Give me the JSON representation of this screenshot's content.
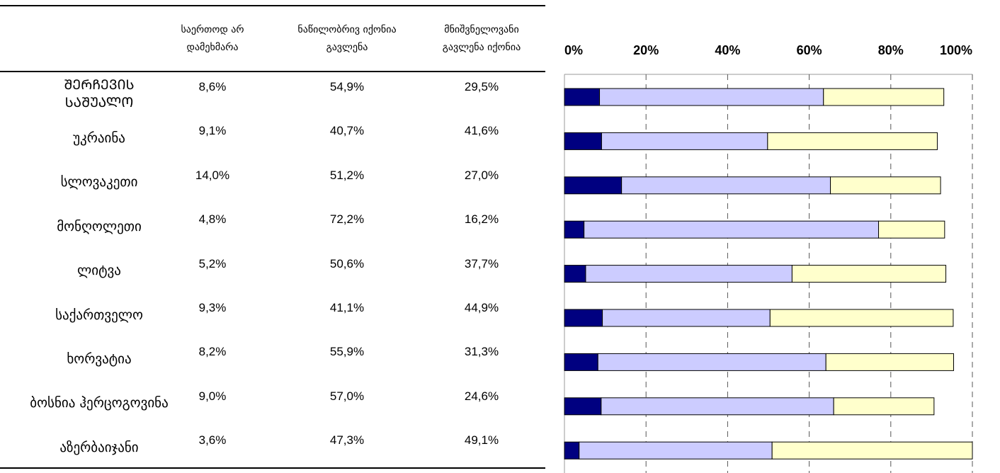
{
  "chart_data": {
    "type": "bar",
    "orientation": "horizontal",
    "stacked": true,
    "categories": [
      "ᲨᲔᲠᲩᲔᲕᲘᲡ ᲡᲐᲨᲣᲐᲚᲝ",
      "უკრაინა",
      "სლოვაკეთი",
      "მონღოლეთი",
      "ლიტვა",
      "საქართველო",
      "ხორვატია",
      "ბოსნია ჰერცოგოვინა",
      "აზერბაიჯანი"
    ],
    "series": [
      {
        "name": "საერთოდ არ დამეხმარა",
        "color": "#000080",
        "values": [
          8.6,
          9.1,
          14.0,
          4.8,
          5.2,
          9.3,
          8.2,
          9.0,
          3.6
        ],
        "value_labels": [
          "8,6%",
          "9,1%",
          "14,0%",
          "4,8%",
          "5,2%",
          "9,3%",
          "8,2%",
          "9,0%",
          "3,6%"
        ]
      },
      {
        "name": "ნაწილობრივ იქონია გავლენა",
        "color": "#ccccff",
        "values": [
          54.9,
          40.7,
          51.2,
          72.2,
          50.6,
          41.1,
          55.9,
          57.0,
          47.3
        ],
        "value_labels": [
          "54,9%",
          "40,7%",
          "51,2%",
          "72,2%",
          "50,6%",
          "41,1%",
          "55,9%",
          "57,0%",
          "47,3%"
        ]
      },
      {
        "name": "მნიშვნელოვანი გავლენა იქონია",
        "color": "#ffffcc",
        "values": [
          29.5,
          41.6,
          27.0,
          16.2,
          37.7,
          44.9,
          31.3,
          24.6,
          49.1
        ],
        "value_labels": [
          "29,5%",
          "41,6%",
          "27,0%",
          "16,2%",
          "37,7%",
          "44,9%",
          "31,3%",
          "24,6%",
          "49,1%"
        ]
      }
    ],
    "xlim": [
      0,
      100
    ],
    "xticks": [
      {
        "value": 0,
        "label": "0%"
      },
      {
        "value": 20,
        "label": "20%"
      },
      {
        "value": 40,
        "label": "40%"
      },
      {
        "value": 60,
        "label": "60%"
      },
      {
        "value": 80,
        "label": "80%"
      },
      {
        "value": 100,
        "label": "100%"
      }
    ],
    "grid": true
  }
}
